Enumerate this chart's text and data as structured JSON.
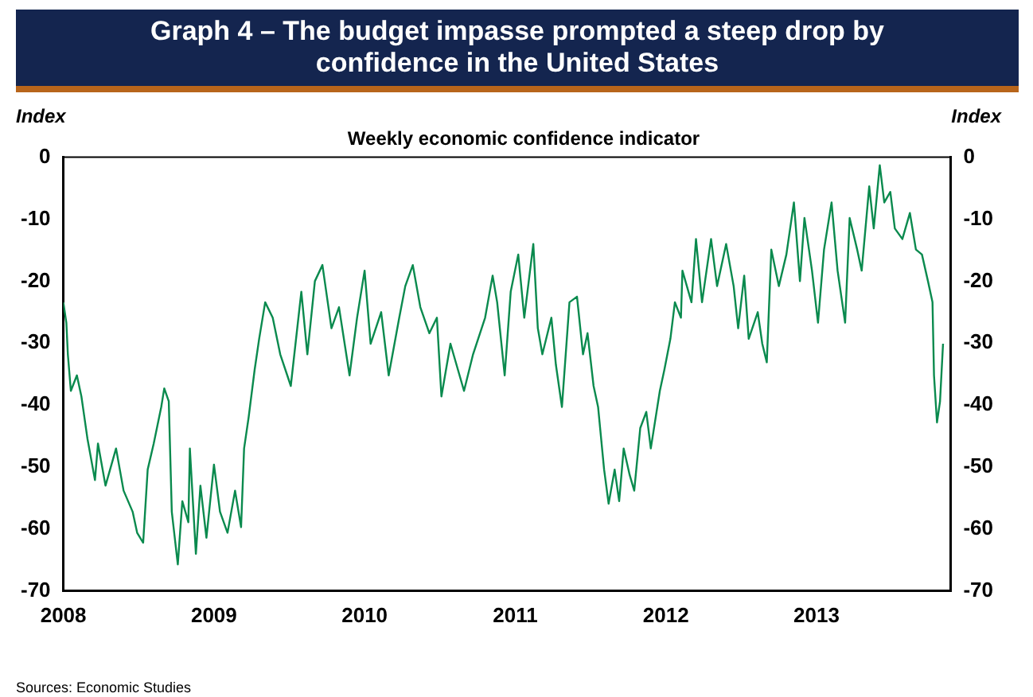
{
  "chart_data": {
    "type": "line",
    "title": "Graph 4 – The budget impasse prompted a steep drop by confidence in the United States",
    "subtitle": "Weekly economic confidence indicator",
    "ylabel": "Index",
    "y2label": "Index",
    "annotations": [
      "Sources: Economic Studies"
    ],
    "x": [
      2008.0,
      2008.02,
      2008.03,
      2008.05,
      2008.09,
      2008.12,
      2008.16,
      2008.21,
      2008.23,
      2008.28,
      2008.35,
      2008.4,
      2008.46,
      2008.49,
      2008.53,
      2008.56,
      2008.6,
      2008.65,
      2008.67,
      2008.7,
      2008.72,
      2008.76,
      2008.79,
      2008.83,
      2008.84,
      2008.88,
      2008.91,
      2008.95,
      2009.0,
      2009.04,
      2009.09,
      2009.14,
      2009.18,
      2009.2,
      2009.23,
      2009.27,
      2009.3,
      2009.34,
      2009.39,
      2009.44,
      2009.51,
      2009.58,
      2009.62,
      2009.67,
      2009.72,
      2009.78,
      2009.83,
      2009.9,
      2009.95,
      2010.0,
      2010.04,
      2010.11,
      2010.16,
      2010.23,
      2010.27,
      2010.32,
      2010.37,
      2010.43,
      2010.48,
      2010.51,
      2010.57,
      2010.66,
      2010.72,
      2010.8,
      2010.85,
      2010.88,
      2010.93,
      2010.97,
      2011.02,
      2011.06,
      2011.12,
      2011.15,
      2011.18,
      2011.24,
      2011.27,
      2011.31,
      2011.36,
      2011.41,
      2011.45,
      2011.48,
      2011.52,
      2011.55,
      2011.59,
      2011.62,
      2011.66,
      2011.69,
      2011.72,
      2011.76,
      2011.79,
      2011.83,
      2011.87,
      2011.9,
      2011.96,
      2011.99,
      2012.03,
      2012.06,
      2012.1,
      2012.11,
      2012.17,
      2012.2,
      2012.24,
      2012.3,
      2012.34,
      2012.4,
      2012.45,
      2012.48,
      2012.52,
      2012.55,
      2012.61,
      2012.64,
      2012.67,
      2012.7,
      2012.75,
      2012.8,
      2012.85,
      2012.89,
      2012.92,
      2012.97,
      2013.01,
      2013.05,
      2013.1,
      2013.14,
      2013.19,
      2013.22,
      2013.27,
      2013.3,
      2013.35,
      2013.38,
      2013.42,
      2013.45,
      2013.49,
      2013.52,
      2013.57,
      2013.62,
      2013.66,
      2013.7,
      2013.74,
      2013.77,
      2013.78,
      2013.8,
      2013.82,
      2013.84
    ],
    "series": [
      {
        "color": "#0a8a4e",
        "values": [
          -23.4,
          -26.7,
          -31.8,
          -37.7,
          -35.2,
          -38.6,
          -45.4,
          -52.1,
          -46.2,
          -53,
          -47,
          -53.8,
          -57.2,
          -60.6,
          -62.2,
          -50.4,
          -46.2,
          -40.3,
          -37.3,
          -39.4,
          -57.2,
          -65.7,
          -55.5,
          -58.9,
          -47,
          -64,
          -53,
          -61.4,
          -49.6,
          -57.2,
          -60.6,
          -53.8,
          -59.7,
          -47,
          -42,
          -34.3,
          -29.3,
          -23.4,
          -25.9,
          -31.8,
          -36.9,
          -21.7,
          -31.8,
          -20,
          -17.4,
          -27.6,
          -24.2,
          -35.2,
          -25.9,
          -18.3,
          -30.1,
          -25,
          -35.2,
          -25.9,
          -20.8,
          -17.4,
          -24.2,
          -28.4,
          -25.9,
          -38.6,
          -30.1,
          -37.7,
          -31.8,
          -25.9,
          -19.1,
          -23.4,
          -35.2,
          -21.7,
          -15.7,
          -25.9,
          -14,
          -27.6,
          -31.8,
          -25.9,
          -33.5,
          -40.3,
          -23.4,
          -22.5,
          -31.8,
          -28.4,
          -36.9,
          -40.3,
          -50.4,
          -55.9,
          -50.4,
          -55.5,
          -47,
          -51.3,
          -53.8,
          -43.7,
          -41.1,
          -47,
          -37.7,
          -34.3,
          -29.3,
          -23.4,
          -25.9,
          -18.3,
          -23.4,
          -13.2,
          -23.4,
          -13.2,
          -20.8,
          -14,
          -20.8,
          -27.6,
          -19.1,
          -29.3,
          -25,
          -30.1,
          -33.1,
          -14.9,
          -20.8,
          -15.7,
          -7.3,
          -20,
          -9.8,
          -18.3,
          -26.7,
          -14.9,
          -7.3,
          -18.3,
          -26.7,
          -9.8,
          -14.9,
          -18.3,
          -4.7,
          -11.5,
          -1.3,
          -7.3,
          -5.6,
          -11.5,
          -13.2,
          -9,
          -14.9,
          -15.7,
          -20,
          -23.4,
          -35.2,
          -42.8,
          -39.4,
          -30.1
        ]
      }
    ],
    "xlim": [
      2008,
      2013.89
    ],
    "xticks": [
      2008,
      2009,
      2010,
      2011,
      2012,
      2013
    ],
    "ylim": [
      -70,
      0
    ],
    "yticks": [
      -70,
      -60,
      -50,
      -40,
      -30,
      -20,
      -10,
      0
    ],
    "y2lim": [
      -70,
      0
    ],
    "y2ticks": [
      -70,
      -60,
      -50,
      -40,
      -30,
      -20,
      -10,
      0
    ],
    "marker": "none",
    "line_style": "solid"
  }
}
